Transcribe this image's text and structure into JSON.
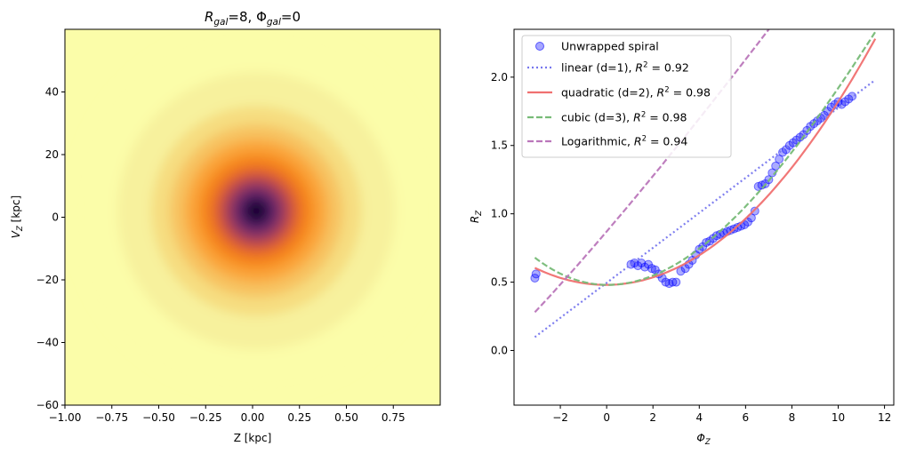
{
  "chart_data": [
    {
      "type": "heatmap",
      "title_parts": {
        "r_symbol": "R",
        "r_sub": "gal",
        "r_eq": "=8, ",
        "phi_symbol": "Φ",
        "phi_sub": "gal",
        "phi_eq": "=0"
      },
      "xlabel": "Z [kpc]",
      "ylabel_parts": {
        "symbol": "V",
        "sub": "Z",
        "rest": " [kpc]"
      },
      "xlim": [
        -1.0,
        1.0
      ],
      "ylim": [
        -60,
        60
      ],
      "xticks": [
        -1.0,
        -0.75,
        -0.5,
        -0.25,
        0.0,
        0.25,
        0.5,
        0.75
      ],
      "xtick_labels": [
        "−1.00",
        "−0.75",
        "−0.50",
        "−0.25",
        "0.00",
        "0.25",
        "0.50",
        "0.75"
      ],
      "yticks": [
        -60,
        -40,
        -20,
        0,
        20,
        40
      ],
      "ytick_labels": [
        "−60",
        "−40",
        "−20",
        "0",
        "20",
        "40"
      ],
      "colormap": "inferno_r",
      "center": [
        0.02,
        2
      ],
      "rings": [
        {
          "r_z": 0.98,
          "color": "#fbfda9"
        },
        {
          "r_z": 0.74,
          "color": "#f7f19d"
        },
        {
          "r_z": 0.56,
          "color": "#f6dd80"
        },
        {
          "r_z": 0.46,
          "color": "#f7c260"
        },
        {
          "r_z": 0.38,
          "color": "#faa53a"
        },
        {
          "r_z": 0.31,
          "color": "#f7891f"
        },
        {
          "r_z": 0.25,
          "color": "#e86a25"
        },
        {
          "r_z": 0.2,
          "color": "#c14b4a"
        },
        {
          "r_z": 0.155,
          "color": "#8d3565"
        },
        {
          "r_z": 0.11,
          "color": "#5b2067"
        },
        {
          "r_z": 0.07,
          "color": "#2c0e4a"
        },
        {
          "r_z": 0.035,
          "color": "#0c0521"
        }
      ]
    },
    {
      "type": "scatter",
      "xlabel_parts": {
        "symbol": "Φ",
        "sub": "Z"
      },
      "ylabel_parts": {
        "symbol": "R",
        "sub": "Z"
      },
      "xlim": [
        -4.0,
        12.4
      ],
      "ylim": [
        -0.4,
        2.35
      ],
      "xticks": [
        -2,
        0,
        2,
        4,
        6,
        8,
        10,
        12
      ],
      "xtick_labels": [
        "−2",
        "0",
        "2",
        "4",
        "6",
        "8",
        "10",
        "12"
      ],
      "yticks": [
        0.0,
        0.5,
        1.0,
        1.5,
        2.0
      ],
      "ytick_labels": [
        "0.0",
        "0.5",
        "1.0",
        "1.5",
        "2.0"
      ],
      "legend_position": "upper-left",
      "series": [
        {
          "name": "Unwrapped spiral",
          "kind": "markers",
          "color": "#0000ff",
          "x": [
            -3.1,
            -3.05,
            1.05,
            1.2,
            1.35,
            1.5,
            1.65,
            1.8,
            1.95,
            2.1,
            2.25,
            2.4,
            2.55,
            2.7,
            2.85,
            3.0,
            3.2,
            3.4,
            3.55,
            3.7,
            3.85,
            4.0,
            4.15,
            4.3,
            4.45,
            4.6,
            4.75,
            4.9,
            5.05,
            5.2,
            5.35,
            5.5,
            5.65,
            5.8,
            5.95,
            6.1,
            6.25,
            6.4,
            6.55,
            6.7,
            6.85,
            7.0,
            7.15,
            7.3,
            7.45,
            7.6,
            7.75,
            7.9,
            8.05,
            8.2,
            8.35,
            8.5,
            8.65,
            8.8,
            8.95,
            9.1,
            9.25,
            9.4,
            9.55,
            9.7,
            9.85,
            10.0,
            10.15,
            10.3,
            10.45,
            10.6
          ],
          "y": [
            0.53,
            0.56,
            0.63,
            0.64,
            0.62,
            0.64,
            0.61,
            0.63,
            0.6,
            0.59,
            0.56,
            0.53,
            0.5,
            0.49,
            0.5,
            0.5,
            0.58,
            0.6,
            0.63,
            0.66,
            0.7,
            0.74,
            0.76,
            0.79,
            0.8,
            0.82,
            0.84,
            0.85,
            0.86,
            0.87,
            0.88,
            0.89,
            0.9,
            0.91,
            0.92,
            0.94,
            0.97,
            1.02,
            1.2,
            1.21,
            1.22,
            1.25,
            1.3,
            1.35,
            1.4,
            1.45,
            1.47,
            1.5,
            1.52,
            1.54,
            1.56,
            1.58,
            1.61,
            1.64,
            1.66,
            1.68,
            1.7,
            1.72,
            1.75,
            1.78,
            1.8,
            1.82,
            1.8,
            1.82,
            1.84,
            1.86
          ]
        },
        {
          "name_prefix": "linear (d=1), ",
          "r2_symbol": "R",
          "r2_sup": "2",
          "r2_value": " = 0.92",
          "kind": "dotted",
          "color": "#7777ee",
          "coef": [
            0.495,
            0.128
          ],
          "from": -3.1,
          "to": 11.6
        },
        {
          "name_prefix": "quadratic (d=2), ",
          "r2_symbol": "R",
          "r2_sup": "2",
          "r2_value": " = 0.98",
          "kind": "solid",
          "color": "#f07070",
          "coef": [
            0.48,
            0.001,
            0.0133
          ],
          "from": -3.1,
          "to": 11.6
        },
        {
          "name_prefix": "cubic (d=3), ",
          "r2_symbol": "R",
          "r2_sup": "2",
          "r2_value": " = 0.98",
          "kind": "dashed",
          "color": "#77bb77",
          "coef": [
            0.48,
            -0.002,
            0.0188,
            -0.00042
          ],
          "from": -3.1,
          "to": 11.6
        },
        {
          "name_prefix": "Logarithmic, ",
          "r2_symbol": "R",
          "r2_sup": "2",
          "r2_value": " = 0.94",
          "kind": "dashed",
          "color": "#bb77bb",
          "log_fit": {
            "a": 0.28,
            "b": 1.0,
            "c": 3.5,
            "p": 1.15
          },
          "from": -3.1,
          "to": 11.6
        }
      ]
    }
  ]
}
